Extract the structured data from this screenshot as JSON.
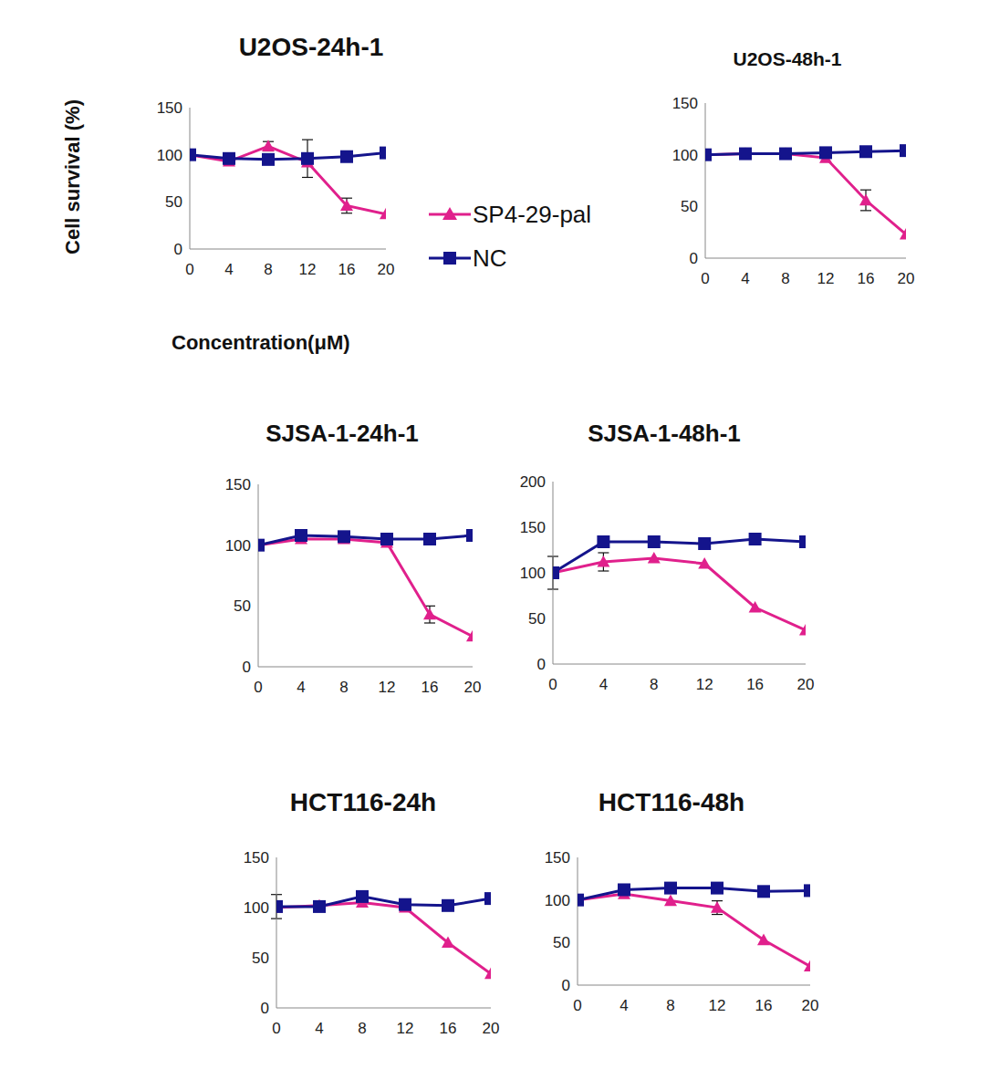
{
  "chart_data": [
    {
      "type": "line",
      "title": "U2OS-24h-1",
      "x_label": "Concentration(μM)",
      "y_label": "Cell survival (%)",
      "legend": "right",
      "x": [
        0,
        4,
        8,
        12,
        16,
        20
      ],
      "xlim": [
        0,
        20
      ],
      "xticks": [
        0,
        4,
        8,
        12,
        16,
        20
      ],
      "ylim": [
        0,
        150
      ],
      "yticks": [
        0,
        50,
        100,
        150
      ],
      "series": [
        {
          "name": "SP4-29-pal",
          "color": "#e0208c",
          "marker": "triangle",
          "values": [
            100,
            93,
            109,
            92,
            46,
            37
          ],
          "errors": [
            null,
            null,
            5,
            null,
            8,
            null
          ]
        },
        {
          "name": "NC",
          "color": "#14148c",
          "marker": "square",
          "values": [
            100,
            96,
            95,
            96,
            98,
            102
          ],
          "errors": [
            null,
            null,
            null,
            20,
            null,
            null
          ]
        }
      ]
    },
    {
      "type": "line",
      "title": "U2OS-48h-1",
      "x": [
        0,
        4,
        8,
        12,
        16,
        20
      ],
      "xlim": [
        0,
        20
      ],
      "xticks": [
        0,
        4,
        8,
        12,
        16,
        20
      ],
      "ylim": [
        0,
        150
      ],
      "yticks": [
        0,
        50,
        100,
        150
      ],
      "series": [
        {
          "name": "SP4-29-pal",
          "color": "#e0208c",
          "marker": "triangle",
          "values": [
            100,
            101,
            101,
            97,
            56,
            23
          ],
          "errors": [
            null,
            null,
            null,
            null,
            10,
            null
          ]
        },
        {
          "name": "NC",
          "color": "#14148c",
          "marker": "square",
          "values": [
            100,
            101,
            101,
            102,
            103,
            104
          ],
          "errors": [
            null,
            null,
            null,
            null,
            null,
            null
          ]
        }
      ]
    },
    {
      "type": "line",
      "title": "SJSA-1-24h-1",
      "x": [
        0,
        4,
        8,
        12,
        16,
        20
      ],
      "xlim": [
        0,
        20
      ],
      "xticks": [
        0,
        4,
        8,
        12,
        16,
        20
      ],
      "ylim": [
        0,
        150
      ],
      "yticks": [
        0,
        50,
        100,
        150
      ],
      "series": [
        {
          "name": "SP4-29-pal",
          "color": "#e0208c",
          "marker": "triangle",
          "values": [
            100,
            105,
            105,
            102,
            43,
            25
          ],
          "errors": [
            null,
            null,
            null,
            null,
            7,
            null
          ]
        },
        {
          "name": "NC",
          "color": "#14148c",
          "marker": "square",
          "values": [
            100,
            108,
            107,
            105,
            105,
            108
          ],
          "errors": [
            null,
            null,
            null,
            null,
            null,
            null
          ]
        }
      ]
    },
    {
      "type": "line",
      "title": "SJSA-1-48h-1",
      "x": [
        0,
        4,
        8,
        12,
        16,
        20
      ],
      "xlim": [
        0,
        20
      ],
      "xticks": [
        0,
        4,
        8,
        12,
        16,
        20
      ],
      "ylim": [
        0,
        200
      ],
      "yticks": [
        0,
        50,
        100,
        150,
        200
      ],
      "series": [
        {
          "name": "SP4-29-pal",
          "color": "#e0208c",
          "marker": "triangle",
          "values": [
            100,
            112,
            116,
            110,
            62,
            37
          ],
          "errors": [
            null,
            10,
            null,
            null,
            null,
            null
          ]
        },
        {
          "name": "NC",
          "color": "#14148c",
          "marker": "square",
          "values": [
            100,
            134,
            134,
            132,
            137,
            134
          ],
          "errors": [
            18,
            null,
            null,
            null,
            null,
            null
          ]
        }
      ]
    },
    {
      "type": "line",
      "title": "HCT116-24h",
      "x": [
        0,
        4,
        8,
        12,
        16,
        20
      ],
      "xlim": [
        0,
        20
      ],
      "xticks": [
        0,
        4,
        8,
        12,
        16,
        20
      ],
      "ylim": [
        0,
        150
      ],
      "yticks": [
        0,
        50,
        100,
        150
      ],
      "series": [
        {
          "name": "SP4-29-pal",
          "color": "#e0208c",
          "marker": "triangle",
          "values": [
            100,
            102,
            105,
            100,
            65,
            34
          ],
          "errors": [
            null,
            null,
            null,
            null,
            null,
            null
          ]
        },
        {
          "name": "NC",
          "color": "#14148c",
          "marker": "square",
          "values": [
            101,
            101,
            111,
            103,
            102,
            109
          ],
          "errors": [
            12,
            null,
            null,
            null,
            null,
            null
          ]
        }
      ]
    },
    {
      "type": "line",
      "title": "HCT116-48h",
      "x": [
        0,
        4,
        8,
        12,
        16,
        20
      ],
      "xlim": [
        0,
        20
      ],
      "xticks": [
        0,
        4,
        8,
        12,
        16,
        20
      ],
      "ylim": [
        0,
        150
      ],
      "yticks": [
        0,
        50,
        100,
        150
      ],
      "series": [
        {
          "name": "SP4-29-pal",
          "color": "#e0208c",
          "marker": "triangle",
          "values": [
            100,
            107,
            99,
            91,
            53,
            22
          ],
          "errors": [
            null,
            null,
            null,
            8,
            null,
            null
          ]
        },
        {
          "name": "NC",
          "color": "#14148c",
          "marker": "square",
          "values": [
            100,
            112,
            114,
            114,
            110,
            111
          ],
          "errors": [
            null,
            null,
            null,
            null,
            null,
            null
          ]
        }
      ]
    }
  ]
}
